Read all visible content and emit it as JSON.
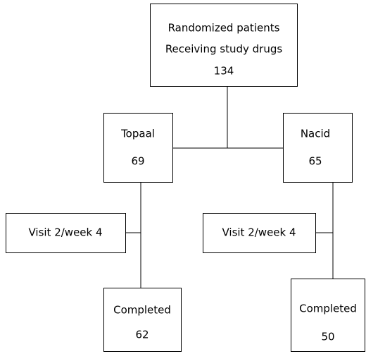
{
  "nodes": [
    {
      "lines": [
        "Randomized patients",
        "Receiving study drugs"
      ],
      "count": 134
    },
    {
      "label": "Topaal",
      "count": 69
    },
    {
      "label": "Nacid",
      "count": 65
    },
    {
      "label": "Visit 2/week 4"
    },
    {
      "label": "Visit 2/week 4"
    },
    {
      "label": "Completed",
      "count": 62
    },
    {
      "label": "Completed",
      "count": 50
    }
  ]
}
